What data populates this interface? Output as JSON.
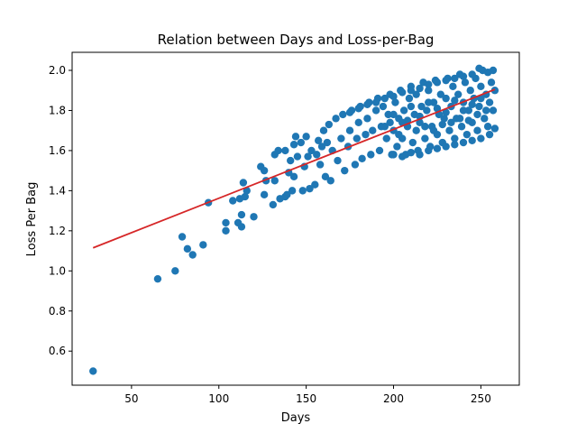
{
  "chart_data": {
    "type": "scatter",
    "title": "Relation between Days and Loss-per-Bag",
    "xlabel": "Days",
    "ylabel": "Loss Per Bag",
    "xlim": [
      16,
      272
    ],
    "ylim": [
      0.43,
      2.09
    ],
    "xticks": [
      50,
      100,
      150,
      200,
      250
    ],
    "yticks": [
      0.6,
      0.8,
      1.0,
      1.2,
      1.4,
      1.6,
      1.8,
      2.0
    ],
    "grid": false,
    "colors": {
      "points": "#1f77b4",
      "trend": "#d62728"
    },
    "points": [
      [
        28,
        0.5
      ],
      [
        65,
        0.96
      ],
      [
        75,
        1.0
      ],
      [
        79,
        1.17
      ],
      [
        82,
        1.11
      ],
      [
        85,
        1.08
      ],
      [
        91,
        1.13
      ],
      [
        94,
        1.34
      ],
      [
        104,
        1.2
      ],
      [
        104,
        1.24
      ],
      [
        108,
        1.35
      ],
      [
        111,
        1.24
      ],
      [
        112,
        1.36
      ],
      [
        113,
        1.22
      ],
      [
        113,
        1.28
      ],
      [
        114,
        1.44
      ],
      [
        115,
        1.37
      ],
      [
        116,
        1.4
      ],
      [
        120,
        1.27
      ],
      [
        124,
        1.52
      ],
      [
        126,
        1.38
      ],
      [
        126,
        1.5
      ],
      [
        127,
        1.45
      ],
      [
        131,
        1.33
      ],
      [
        132,
        1.45
      ],
      [
        132,
        1.58
      ],
      [
        134,
        1.6
      ],
      [
        135,
        1.36
      ],
      [
        138,
        1.37
      ],
      [
        138,
        1.6
      ],
      [
        139,
        1.38
      ],
      [
        140,
        1.49
      ],
      [
        141,
        1.55
      ],
      [
        142,
        1.4
      ],
      [
        143,
        1.47
      ],
      [
        143,
        1.63
      ],
      [
        144,
        1.67
      ],
      [
        145,
        1.57
      ],
      [
        147,
        1.64
      ],
      [
        148,
        1.4
      ],
      [
        149,
        1.52
      ],
      [
        150,
        1.67
      ],
      [
        151,
        1.57
      ],
      [
        152,
        1.41
      ],
      [
        153,
        1.6
      ],
      [
        155,
        1.43
      ],
      [
        156,
        1.58
      ],
      [
        157,
        1.65
      ],
      [
        158,
        1.53
      ],
      [
        159,
        1.62
      ],
      [
        160,
        1.7
      ],
      [
        161,
        1.47
      ],
      [
        162,
        1.64
      ],
      [
        163,
        1.73
      ],
      [
        164,
        1.45
      ],
      [
        165,
        1.6
      ],
      [
        167,
        1.76
      ],
      [
        168,
        1.55
      ],
      [
        170,
        1.66
      ],
      [
        171,
        1.78
      ],
      [
        172,
        1.5
      ],
      [
        174,
        1.62
      ],
      [
        175,
        1.7
      ],
      [
        176,
        1.8
      ],
      [
        178,
        1.53
      ],
      [
        179,
        1.66
      ],
      [
        180,
        1.74
      ],
      [
        181,
        1.82
      ],
      [
        182,
        1.56
      ],
      [
        184,
        1.68
      ],
      [
        185,
        1.76
      ],
      [
        186,
        1.84
      ],
      [
        187,
        1.58
      ],
      [
        188,
        1.7
      ],
      [
        190,
        1.8
      ],
      [
        191,
        1.86
      ],
      [
        192,
        1.6
      ],
      [
        193,
        1.72
      ],
      [
        194,
        1.82
      ],
      [
        196,
        1.66
      ],
      [
        197,
        1.78
      ],
      [
        198,
        1.88
      ],
      [
        199,
        1.58
      ],
      [
        200,
        1.7
      ],
      [
        201,
        1.84
      ],
      [
        202,
        1.62
      ],
      [
        203,
        1.76
      ],
      [
        204,
        1.9
      ],
      [
        205,
        1.66
      ],
      [
        206,
        1.8
      ],
      [
        207,
        1.58
      ],
      [
        208,
        1.72
      ],
      [
        209,
        1.86
      ],
      [
        210,
        1.92
      ],
      [
        211,
        1.64
      ],
      [
        212,
        1.78
      ],
      [
        213,
        1.88
      ],
      [
        214,
        1.6
      ],
      [
        215,
        1.74
      ],
      [
        216,
        1.82
      ],
      [
        217,
        1.94
      ],
      [
        218,
        1.66
      ],
      [
        219,
        1.8
      ],
      [
        220,
        1.9
      ],
      [
        221,
        1.62
      ],
      [
        222,
        1.72
      ],
      [
        223,
        1.84
      ],
      [
        224,
        1.95
      ],
      [
        225,
        1.68
      ],
      [
        226,
        1.78
      ],
      [
        227,
        1.88
      ],
      [
        228,
        1.64
      ],
      [
        229,
        1.76
      ],
      [
        230,
        1.86
      ],
      [
        231,
        1.96
      ],
      [
        232,
        1.7
      ],
      [
        233,
        1.82
      ],
      [
        234,
        1.92
      ],
      [
        235,
        1.66
      ],
      [
        236,
        1.76
      ],
      [
        237,
        1.88
      ],
      [
        238,
        1.98
      ],
      [
        239,
        1.72
      ],
      [
        240,
        1.84
      ],
      [
        241,
        1.94
      ],
      [
        242,
        1.68
      ],
      [
        243,
        1.8
      ],
      [
        244,
        1.9
      ],
      [
        245,
        1.74
      ],
      [
        246,
        1.86
      ],
      [
        247,
        1.96
      ],
      [
        248,
        1.7
      ],
      [
        249,
        1.82
      ],
      [
        250,
        1.92
      ],
      [
        251,
        2.0
      ],
      [
        252,
        1.76
      ],
      [
        253,
        1.88
      ],
      [
        254,
        1.72
      ],
      [
        255,
        1.84
      ],
      [
        256,
        1.94
      ],
      [
        257,
        1.8
      ],
      [
        258,
        1.9
      ],
      [
        258,
        1.71
      ],
      [
        257,
        2.0
      ],
      [
        254,
        1.99
      ],
      [
        249,
        2.01
      ],
      [
        245,
        1.98
      ],
      [
        240,
        1.97
      ],
      [
        235,
        1.96
      ],
      [
        230,
        1.95
      ],
      [
        225,
        1.94
      ],
      [
        220,
        1.93
      ],
      [
        215,
        1.91
      ],
      [
        210,
        1.9
      ],
      [
        205,
        1.89
      ],
      [
        200,
        1.87
      ],
      [
        195,
        1.86
      ],
      [
        190,
        1.84
      ],
      [
        185,
        1.83
      ],
      [
        180,
        1.81
      ],
      [
        175,
        1.79
      ],
      [
        200,
        1.58
      ],
      [
        205,
        1.57
      ],
      [
        210,
        1.59
      ],
      [
        215,
        1.58
      ],
      [
        220,
        1.6
      ],
      [
        225,
        1.61
      ],
      [
        230,
        1.62
      ],
      [
        235,
        1.63
      ],
      [
        240,
        1.64
      ],
      [
        245,
        1.65
      ],
      [
        250,
        1.66
      ],
      [
        255,
        1.68
      ],
      [
        198,
        1.74
      ],
      [
        203,
        1.68
      ],
      [
        208,
        1.75
      ],
      [
        213,
        1.7
      ],
      [
        218,
        1.72
      ],
      [
        223,
        1.7
      ],
      [
        228,
        1.73
      ],
      [
        233,
        1.74
      ],
      [
        238,
        1.76
      ],
      [
        243,
        1.75
      ],
      [
        248,
        1.78
      ],
      [
        253,
        1.8
      ],
      [
        195,
        1.72
      ],
      [
        200,
        1.78
      ],
      [
        205,
        1.74
      ],
      [
        210,
        1.82
      ],
      [
        215,
        1.77
      ],
      [
        220,
        1.84
      ],
      [
        225,
        1.81
      ],
      [
        230,
        1.79
      ],
      [
        235,
        1.85
      ],
      [
        240,
        1.8
      ],
      [
        245,
        1.83
      ],
      [
        250,
        1.86
      ]
    ],
    "trendline": {
      "x": [
        28,
        258
      ],
      "y": [
        1.115,
        1.905
      ]
    }
  }
}
